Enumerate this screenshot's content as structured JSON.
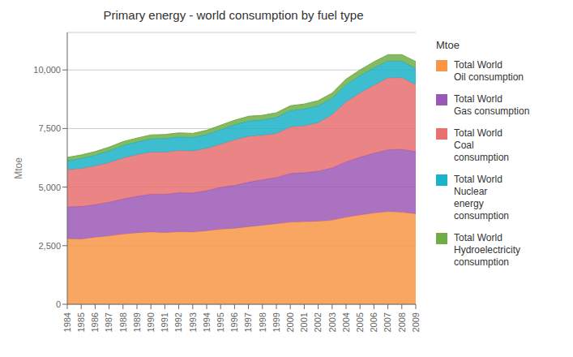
{
  "chart_data": {
    "type": "area",
    "stacked": true,
    "title": "Primary energy - world consumption by fuel type",
    "ylabel": "Mtoe",
    "legend_title": "Mtoe",
    "legend": "right",
    "grid": true,
    "x": [
      1984,
      1985,
      1986,
      1987,
      1988,
      1989,
      1990,
      1991,
      1992,
      1993,
      1994,
      1995,
      1996,
      1997,
      1998,
      1999,
      2000,
      2001,
      2002,
      2003,
      2004,
      2005,
      2006,
      2007,
      2008,
      2009
    ],
    "xlim": [
      1984,
      2009
    ],
    "xticks": [
      1984,
      1985,
      1986,
      1987,
      1988,
      1989,
      1990,
      1991,
      1992,
      1993,
      1994,
      1995,
      1996,
      1997,
      1998,
      1999,
      2000,
      2001,
      2002,
      2003,
      2004,
      2005,
      2006,
      2007,
      2008,
      2009
    ],
    "ylim": [
      0,
      11600
    ],
    "yticks": [
      0,
      {
        "value": 2500,
        "label": "2,500"
      },
      {
        "value": 5000,
        "label": "5,000"
      },
      {
        "value": 7500,
        "label": "7,500"
      },
      {
        "value": 10000,
        "label": "10,000"
      }
    ],
    "series": [
      {
        "name": "Total World\nOil consumption",
        "color": "#f79646",
        "values": [
          2795,
          2780,
          2858,
          2915,
          2993,
          3048,
          3083,
          3057,
          3094,
          3080,
          3132,
          3202,
          3238,
          3309,
          3370,
          3435,
          3503,
          3520,
          3537,
          3590,
          3710,
          3807,
          3893,
          3953,
          3927,
          3862
        ]
      },
      {
        "name": "Total World\nGas consumption",
        "color": "#9b59b6",
        "values": [
          1365,
          1392,
          1395,
          1440,
          1500,
          1555,
          1613,
          1636,
          1665,
          1670,
          1720,
          1790,
          1837,
          1900,
          1945,
          1975,
          2079,
          2094,
          2145,
          2230,
          2370,
          2470,
          2556,
          2638,
          2686,
          2651
        ]
      },
      {
        "name": "Total World\nCoal\nconsumption",
        "color": "#e87070",
        "values": [
          1580,
          1620,
          1650,
          1690,
          1750,
          1780,
          1800,
          1800,
          1800,
          1790,
          1800,
          1840,
          1940,
          1960,
          1900,
          1880,
          1980,
          2000,
          2070,
          2270,
          2560,
          2740,
          2900,
          3070,
          3060,
          2850
        ]
      },
      {
        "name": "Total World\nNuclear\nenergy\nconsumption",
        "color": "#1ab3c8",
        "values": [
          380,
          430,
          460,
          500,
          535,
          540,
          560,
          580,
          580,
          575,
          590,
          620,
          645,
          655,
          650,
          680,
          702,
          720,
          720,
          700,
          730,
          735,
          740,
          726,
          700,
          700
        ]
      },
      {
        "name": "Total World\nHydroelectricity\nconsumption",
        "color": "#70ad47",
        "values": [
          148,
          152,
          155,
          160,
          164,
          168,
          172,
          172,
          175,
          178,
          183,
          188,
          195,
          198,
          200,
          203,
          207,
          213,
          218,
          225,
          240,
          250,
          260,
          265,
          280,
          295
        ]
      }
    ]
  }
}
